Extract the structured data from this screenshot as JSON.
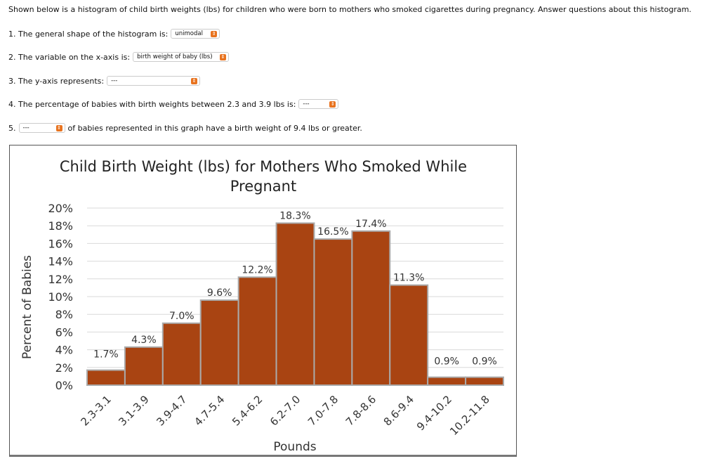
{
  "intro": "Shown below is a histogram of child birth weights (lbs) for children who were born to mothers who smoked cigarettes during pregnancy. Answer questions about this histogram.",
  "questions": [
    {
      "before": "1. The general shape of the histogram is:",
      "value": "unimodal",
      "after": ""
    },
    {
      "before": "2. The variable on the x-axis is:",
      "value": "birth weight of baby (lbs)",
      "after": ""
    },
    {
      "before": "3. The y-axis represents:",
      "value": "---",
      "after": ""
    },
    {
      "before": "4. The percentage of babies with birth weights between 2.3 and 3.9 lbs is:",
      "value": "---",
      "after": ""
    },
    {
      "before": "5.",
      "value": "---",
      "after": "of babies represented in this graph have a birth weight of 9.4 lbs or greater."
    }
  ],
  "accent": "#e8731f",
  "chart_data": {
    "type": "bar",
    "title_line1": "Child Birth Weight (lbs) for Mothers Who Smoked While",
    "title_line2": "Pregnant",
    "xlabel": "Pounds",
    "ylabel": "Percent of Babies",
    "categories": [
      "2.3-3.1",
      "3.1-3.9",
      "3.9-4.7",
      "4.7-5.4",
      "5.4-6.2",
      "6.2-7.0",
      "7.0-7.8",
      "7.8-8.6",
      "8.6-9.4",
      "9.4-10.2",
      "10.2-11.8"
    ],
    "values": [
      1.7,
      4.3,
      7.0,
      9.6,
      12.2,
      18.3,
      16.5,
      17.4,
      11.3,
      0.9,
      0.9
    ],
    "data_labels": [
      "1.7%",
      "4.3%",
      "7.0%",
      "9.6%",
      "12.2%",
      "18.3%",
      "16.5%",
      "17.4%",
      "11.3%",
      "0.9%",
      "0.9%"
    ],
    "yticks": [
      "0%",
      "2%",
      "4%",
      "6%",
      "8%",
      "10%",
      "12%",
      "14%",
      "16%",
      "18%",
      "20%"
    ],
    "ylim": [
      0,
      20
    ],
    "grid": true,
    "bar_color": "#a94412"
  }
}
